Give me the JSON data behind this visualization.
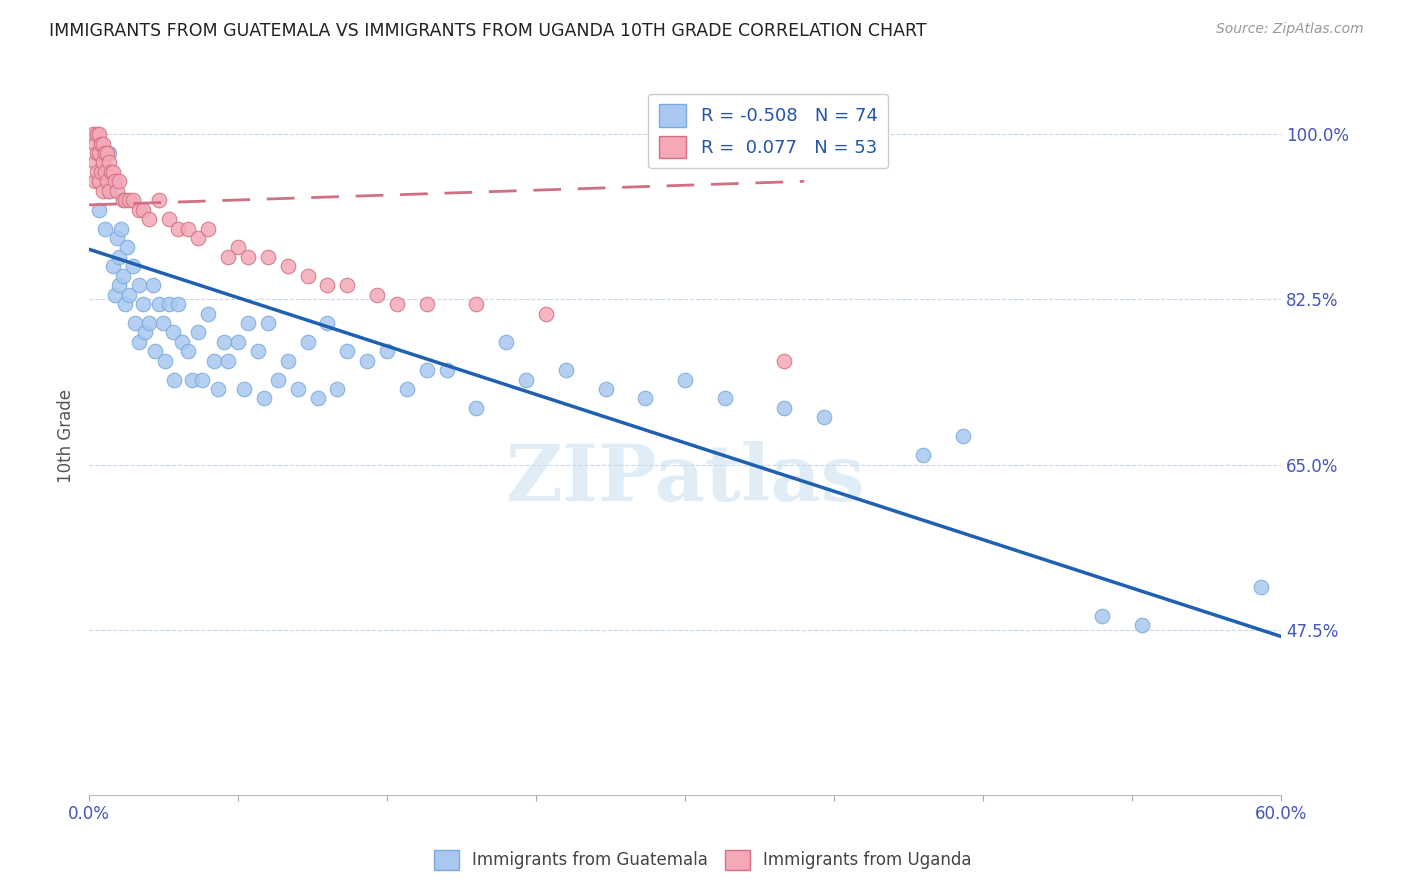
{
  "title": "IMMIGRANTS FROM GUATEMALA VS IMMIGRANTS FROM UGANDA 10TH GRADE CORRELATION CHART",
  "source": "Source: ZipAtlas.com",
  "ylabel": "10th Grade",
  "y_tick_labels": [
    "47.5%",
    "65.0%",
    "82.5%",
    "100.0%"
  ],
  "y_tick_values": [
    0.475,
    0.65,
    0.825,
    1.0
  ],
  "xlim": [
    0.0,
    0.6
  ],
  "ylim": [
    0.3,
    1.06
  ],
  "watermark": "ZIPatlas",
  "blue_color": "#a8c8f0",
  "pink_color": "#f4a8b8",
  "blue_line_color": "#2060b0",
  "pink_line_color": "#d07080",
  "blue_line_x": [
    0.0,
    0.6
  ],
  "blue_line_y": [
    0.878,
    0.468
  ],
  "pink_line_x": [
    0.0,
    0.36
  ],
  "pink_line_y": [
    0.925,
    0.95
  ],
  "guatemala_x": [
    0.005,
    0.008,
    0.01,
    0.01,
    0.012,
    0.013,
    0.014,
    0.015,
    0.015,
    0.016,
    0.017,
    0.018,
    0.019,
    0.02,
    0.022,
    0.023,
    0.025,
    0.025,
    0.027,
    0.028,
    0.03,
    0.032,
    0.033,
    0.035,
    0.037,
    0.038,
    0.04,
    0.042,
    0.043,
    0.045,
    0.047,
    0.05,
    0.052,
    0.055,
    0.057,
    0.06,
    0.063,
    0.065,
    0.068,
    0.07,
    0.075,
    0.078,
    0.08,
    0.085,
    0.088,
    0.09,
    0.095,
    0.1,
    0.105,
    0.11,
    0.115,
    0.12,
    0.125,
    0.13,
    0.14,
    0.15,
    0.16,
    0.17,
    0.18,
    0.195,
    0.21,
    0.22,
    0.24,
    0.26,
    0.28,
    0.3,
    0.32,
    0.35,
    0.37,
    0.42,
    0.44,
    0.51,
    0.53,
    0.59
  ],
  "guatemala_y": [
    0.92,
    0.9,
    0.98,
    0.94,
    0.86,
    0.83,
    0.89,
    0.87,
    0.84,
    0.9,
    0.85,
    0.82,
    0.88,
    0.83,
    0.86,
    0.8,
    0.84,
    0.78,
    0.82,
    0.79,
    0.8,
    0.84,
    0.77,
    0.82,
    0.8,
    0.76,
    0.82,
    0.79,
    0.74,
    0.82,
    0.78,
    0.77,
    0.74,
    0.79,
    0.74,
    0.81,
    0.76,
    0.73,
    0.78,
    0.76,
    0.78,
    0.73,
    0.8,
    0.77,
    0.72,
    0.8,
    0.74,
    0.76,
    0.73,
    0.78,
    0.72,
    0.8,
    0.73,
    0.77,
    0.76,
    0.77,
    0.73,
    0.75,
    0.75,
    0.71,
    0.78,
    0.74,
    0.75,
    0.73,
    0.72,
    0.74,
    0.72,
    0.71,
    0.7,
    0.66,
    0.68,
    0.49,
    0.48,
    0.52
  ],
  "uganda_x": [
    0.002,
    0.003,
    0.003,
    0.003,
    0.004,
    0.004,
    0.004,
    0.005,
    0.005,
    0.005,
    0.006,
    0.006,
    0.007,
    0.007,
    0.007,
    0.008,
    0.008,
    0.009,
    0.009,
    0.01,
    0.01,
    0.011,
    0.012,
    0.013,
    0.014,
    0.015,
    0.017,
    0.018,
    0.02,
    0.022,
    0.025,
    0.027,
    0.03,
    0.035,
    0.04,
    0.045,
    0.05,
    0.055,
    0.06,
    0.07,
    0.075,
    0.08,
    0.09,
    0.1,
    0.11,
    0.12,
    0.13,
    0.145,
    0.155,
    0.17,
    0.195,
    0.23,
    0.35
  ],
  "uganda_y": [
    1.0,
    0.99,
    0.97,
    0.95,
    1.0,
    0.98,
    0.96,
    1.0,
    0.98,
    0.95,
    0.99,
    0.96,
    0.99,
    0.97,
    0.94,
    0.98,
    0.96,
    0.98,
    0.95,
    0.97,
    0.94,
    0.96,
    0.96,
    0.95,
    0.94,
    0.95,
    0.93,
    0.93,
    0.93,
    0.93,
    0.92,
    0.92,
    0.91,
    0.93,
    0.91,
    0.9,
    0.9,
    0.89,
    0.9,
    0.87,
    0.88,
    0.87,
    0.87,
    0.86,
    0.85,
    0.84,
    0.84,
    0.83,
    0.82,
    0.82,
    0.82,
    0.81,
    0.76
  ]
}
